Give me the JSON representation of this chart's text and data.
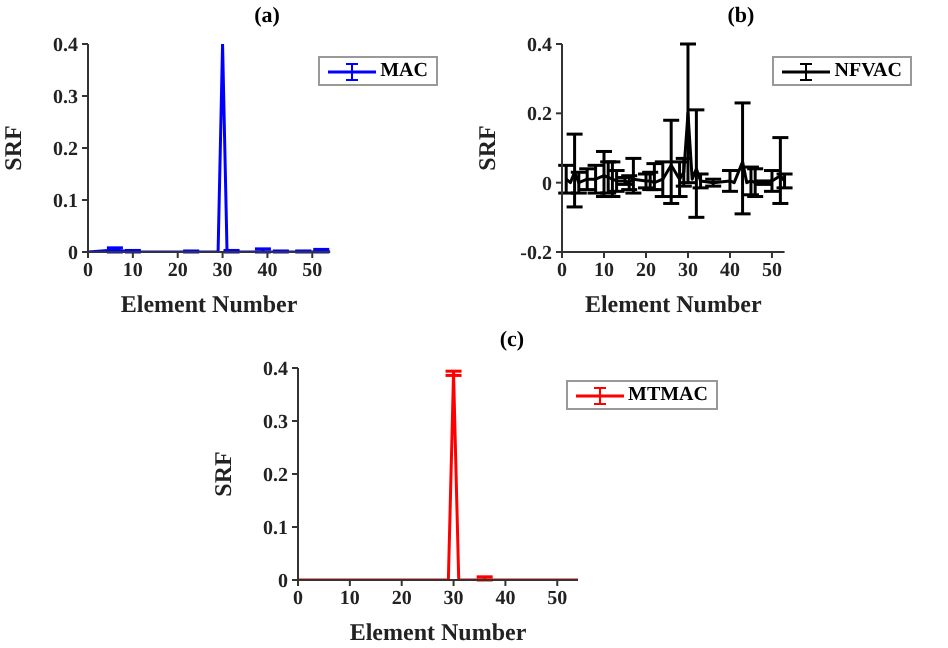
{
  "chart_data": [
    {
      "type": "line",
      "title": "(a)",
      "xlabel": "Element Number",
      "ylabel": "SRF",
      "xlim": [
        0,
        54
      ],
      "xticks": [
        0,
        10,
        20,
        30,
        40,
        50
      ],
      "ylim": [
        0,
        0.4
      ],
      "yticks": [
        0,
        0.1,
        0.2,
        0.3,
        0.4
      ],
      "legend": "top right",
      "grid": false,
      "series": [
        {
          "name": "MAC",
          "color": "#0000ff",
          "x": [
            0,
            6,
            10,
            12,
            23,
            29,
            30,
            31,
            32,
            39,
            43,
            48,
            52,
            54
          ],
          "values": [
            0,
            0.004,
            0,
            0,
            0,
            0,
            0.4,
            0,
            0,
            0,
            0,
            0,
            0,
            0
          ],
          "errors": [
            null,
            0.004,
            [
              0,
              0.003
            ],
            null,
            [
              0,
              0.002
            ],
            null,
            null,
            null,
            [
              0,
              0.003
            ],
            [
              0,
              0.006
            ],
            [
              0,
              0.002
            ],
            [
              0,
              0.002
            ],
            [
              0,
              0.005
            ],
            null
          ]
        }
      ]
    },
    {
      "type": "line",
      "title": "(b)",
      "xlabel": "Element Number",
      "ylabel": "SRF",
      "xlim": [
        0,
        53
      ],
      "xticks": [
        0,
        10,
        20,
        30,
        40,
        50
      ],
      "ylim": [
        -0.2,
        0.4
      ],
      "yticks": [
        -0.2,
        0,
        0.2,
        0.4
      ],
      "legend": "top right",
      "grid": false,
      "series": [
        {
          "name": "NFVAC",
          "color": "#000000",
          "x": [
            1,
            2,
            3,
            4,
            6,
            8,
            10,
            11,
            12,
            13,
            15,
            16,
            17,
            20,
            21,
            22,
            24,
            26,
            28,
            29,
            30,
            31,
            32,
            33,
            36,
            40,
            41,
            43,
            44,
            45,
            46,
            48,
            50,
            52,
            53
          ],
          "values": [
            0.01,
            0,
            0.03,
            0,
            0.01,
            0.01,
            0.02,
            0.015,
            0.01,
            0.005,
            0.005,
            0,
            0.01,
            0.005,
            0.005,
            0,
            0.01,
            0.05,
            0.01,
            0.03,
            0.2,
            0.01,
            0.04,
            0.005,
            0,
            0.005,
            0,
            0.06,
            0,
            0.005,
            0,
            0,
            0.005,
            0.02,
            0.005
          ],
          "errors": [
            [
              -0.03,
              0.05
            ],
            null,
            [
              -0.07,
              0.14
            ],
            [
              -0.03,
              0.03
            ],
            [
              -0.02,
              0.04
            ],
            [
              -0.03,
              0.05
            ],
            [
              -0.04,
              0.09
            ],
            [
              -0.03,
              0.06
            ],
            [
              -0.04,
              0.06
            ],
            [
              -0.025,
              0.035
            ],
            [
              -0.005,
              0.015
            ],
            [
              -0.02,
              0.02
            ],
            [
              -0.03,
              0.07
            ],
            [
              -0.015,
              0.025
            ],
            [
              -0.02,
              0.03
            ],
            [
              -0.02,
              0.055
            ],
            [
              -0.04,
              0.06
            ],
            [
              -0.06,
              0.18
            ],
            [
              -0.04,
              0.06
            ],
            [
              -0.01,
              0.07
            ],
            [
              0,
              0.4
            ],
            null,
            [
              -0.1,
              0.21
            ],
            [
              -0.015,
              0.025
            ],
            [
              -0.01,
              0.01
            ],
            [
              -0.025,
              0.035
            ],
            null,
            [
              -0.09,
              0.23
            ],
            null,
            [
              -0.035,
              0.045
            ],
            [
              -0.04,
              0.04
            ],
            [
              -0.005,
              0.005
            ],
            [
              -0.025,
              0.035
            ],
            [
              -0.06,
              0.13
            ],
            [
              -0.015,
              0.025
            ]
          ]
        }
      ]
    },
    {
      "type": "line",
      "title": "(c)",
      "xlabel": "Element Number",
      "ylabel": "SRF",
      "xlim": [
        0,
        54
      ],
      "xticks": [
        0,
        10,
        20,
        30,
        40,
        50
      ],
      "ylim": [
        0,
        0.4
      ],
      "yticks": [
        0,
        0.1,
        0.2,
        0.3,
        0.4
      ],
      "legend": "top right",
      "grid": false,
      "series": [
        {
          "name": "MTMAC",
          "color": "#ff0000",
          "x": [
            0,
            1,
            29,
            30,
            31,
            36,
            54
          ],
          "values": [
            0,
            0,
            0,
            0.39,
            0,
            0,
            0
          ],
          "errors": [
            null,
            null,
            null,
            0.004,
            null,
            [
              0,
              0.006
            ],
            null
          ]
        }
      ]
    }
  ]
}
